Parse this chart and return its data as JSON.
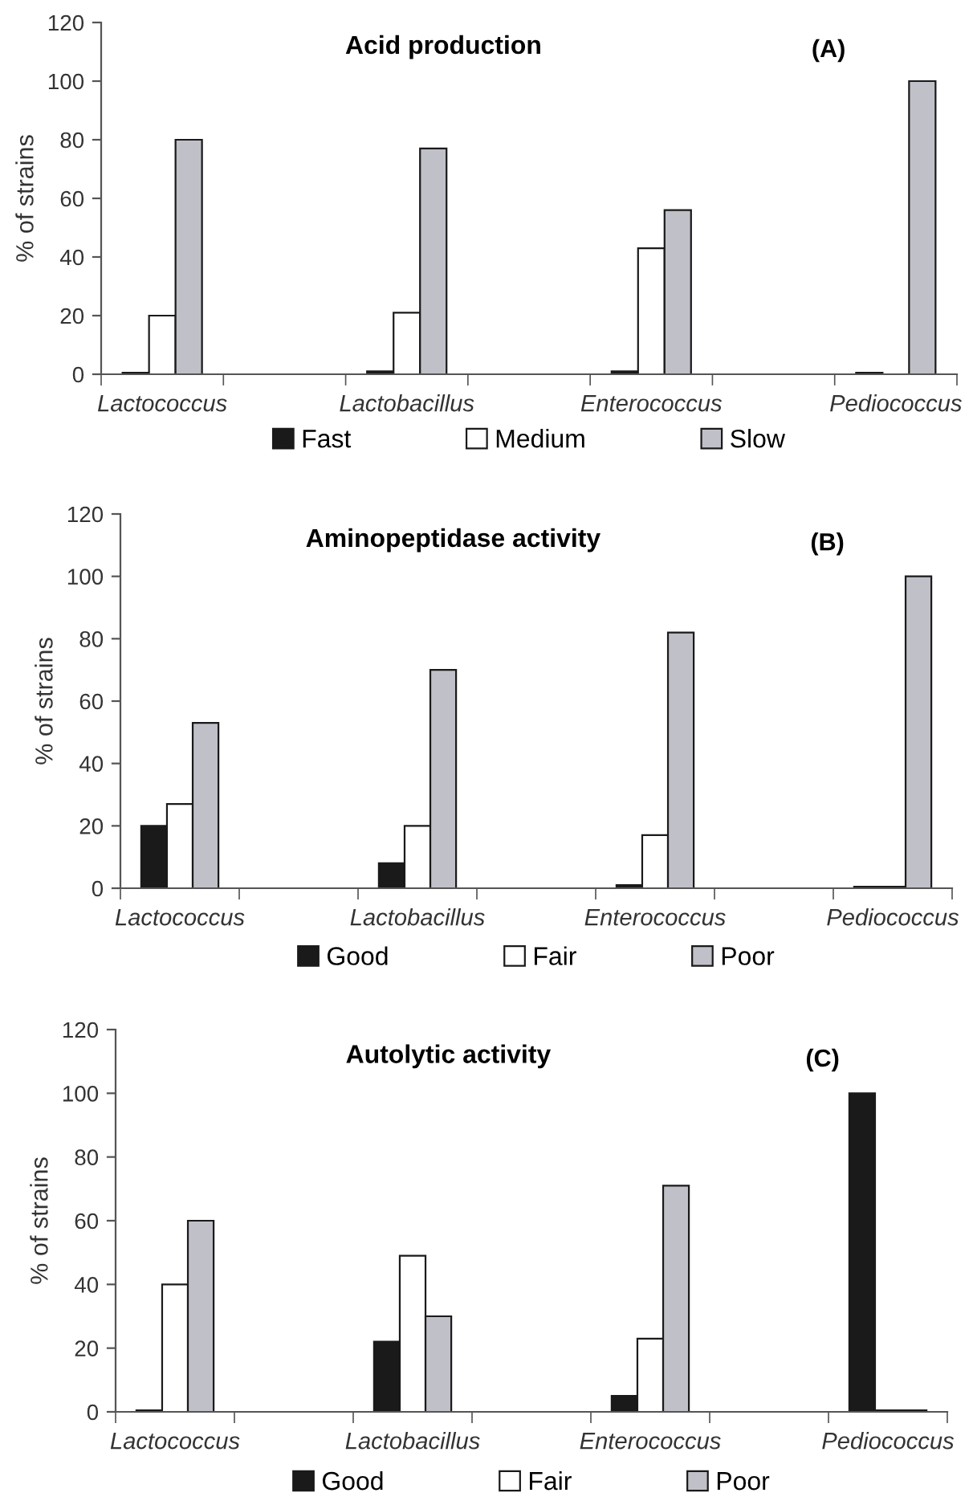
{
  "chart_data": [
    {
      "type": "bar",
      "title": "Acid production",
      "ylabel": "% of strains",
      "annotations": [
        "(A)"
      ],
      "categories": [
        "Lactococcus",
        null,
        "Lactobacillus",
        null,
        "Enterococcus",
        null,
        "Pediococcus"
      ],
      "series": [
        {
          "name": "Fast",
          "color": "#1a1a1a",
          "values": [
            0.5,
            null,
            1,
            null,
            1,
            null,
            0.5
          ]
        },
        {
          "name": "Medium",
          "color": "#ffffff",
          "values": [
            20,
            null,
            21,
            null,
            43,
            null,
            null
          ]
        },
        {
          "name": "Slow",
          "color": "#c0c0c8",
          "values": [
            80,
            null,
            77,
            null,
            56,
            null,
            100
          ]
        }
      ],
      "ylim": [
        0,
        120
      ],
      "yticks": [
        0,
        20,
        40,
        60,
        80,
        100,
        120
      ],
      "grid": false,
      "legend": "bottom"
    },
    {
      "type": "bar",
      "title": "Aminopeptidase activity",
      "ylabel": "% of strains",
      "annotations": [
        "(B)"
      ],
      "categories": [
        "Lactococcus",
        null,
        "Lactobacillus",
        null,
        "Enterococcus",
        null,
        "Pediococcus"
      ],
      "series": [
        {
          "name": "Good",
          "color": "#1a1a1a",
          "values": [
            20,
            null,
            8,
            null,
            1,
            null,
            0.5
          ]
        },
        {
          "name": "Fair",
          "color": "#ffffff",
          "values": [
            27,
            null,
            20,
            null,
            17,
            null,
            0.5
          ]
        },
        {
          "name": "Poor",
          "color": "#c0c0c8",
          "values": [
            53,
            null,
            70,
            null,
            82,
            null,
            100
          ]
        }
      ],
      "ylim": [
        0,
        120
      ],
      "yticks": [
        0,
        20,
        40,
        60,
        80,
        100,
        120
      ],
      "grid": false,
      "legend": "bottom"
    },
    {
      "type": "bar",
      "title": "Autolytic activity",
      "ylabel": "% of strains",
      "annotations": [
        "(C)"
      ],
      "categories": [
        "Lactococcus",
        null,
        "Lactobacillus",
        null,
        "Enterococcus",
        null,
        "Pediococcus"
      ],
      "series": [
        {
          "name": "Good",
          "color": "#1a1a1a",
          "values": [
            0.5,
            null,
            22,
            null,
            5,
            null,
            100
          ]
        },
        {
          "name": "Fair",
          "color": "#ffffff",
          "values": [
            40,
            null,
            49,
            null,
            23,
            null,
            0.5
          ]
        },
        {
          "name": "Poor",
          "color": "#c0c0c8",
          "values": [
            60,
            null,
            30,
            null,
            71,
            null,
            0.5
          ]
        }
      ],
      "ylim": [
        0,
        120
      ],
      "yticks": [
        0,
        20,
        40,
        60,
        80,
        100,
        120
      ],
      "grid": false,
      "legend": "bottom"
    }
  ]
}
